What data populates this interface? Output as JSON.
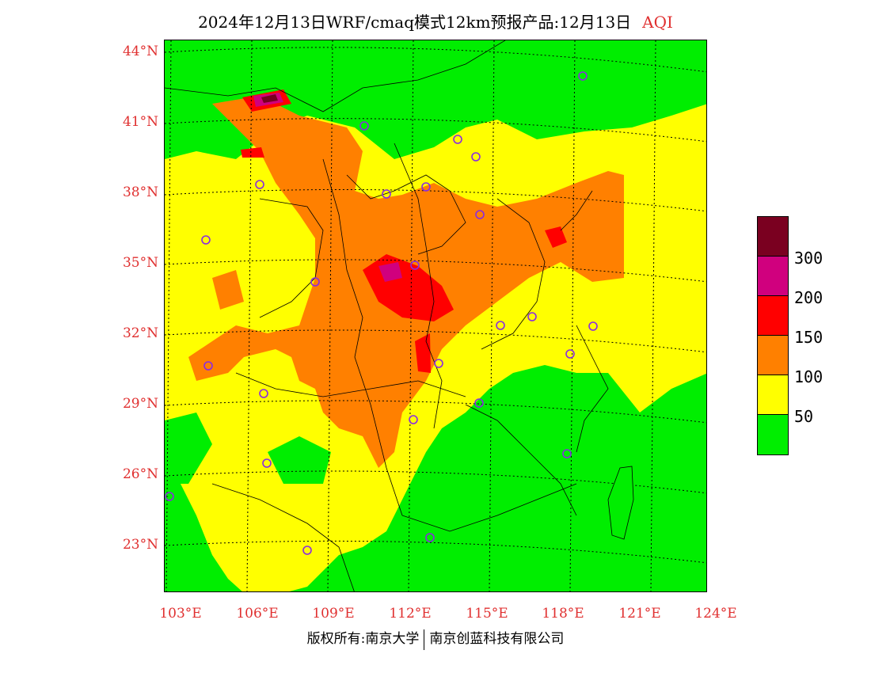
{
  "title": {
    "text": "2024年12月13日WRF/cmaq模式12km预报产品:12月13日",
    "variable": "AQI"
  },
  "lat_labels": [
    "44°N",
    "41°N",
    "38°N",
    "35°N",
    "32°N",
    "29°N",
    "26°N",
    "23°N"
  ],
  "lon_labels": [
    "103°E",
    "106°E",
    "109°E",
    "112°E",
    "115°E",
    "118°E",
    "121°E",
    "124°E"
  ],
  "legend": {
    "colors": [
      "#7a0020",
      "#d0007e",
      "#ff0000",
      "#ff8000",
      "#ffff00",
      "#00ee00"
    ],
    "labels": [
      "300",
      "200",
      "150",
      "100",
      "50"
    ]
  },
  "footer": {
    "copyright": "版权所有:南京大学",
    "company": "南京创蓝科技有限公司"
  }
}
